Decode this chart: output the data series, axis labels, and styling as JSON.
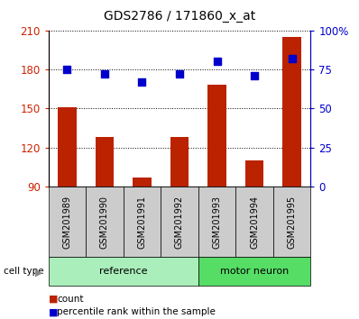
{
  "title": "GDS2786 / 171860_x_at",
  "samples": [
    "GSM201989",
    "GSM201990",
    "GSM201991",
    "GSM201992",
    "GSM201993",
    "GSM201994",
    "GSM201995"
  ],
  "bar_values": [
    151,
    128,
    97,
    128,
    168,
    110,
    205
  ],
  "percentile_values": [
    75,
    72,
    67,
    72,
    80,
    71,
    82
  ],
  "bar_color": "#bb2200",
  "percentile_color": "#0000cc",
  "ylim_left": [
    90,
    210
  ],
  "ylim_right": [
    0,
    100
  ],
  "yticks_left": [
    90,
    120,
    150,
    180,
    210
  ],
  "yticks_right": [
    0,
    25,
    50,
    75,
    100
  ],
  "ytick_labels_right": [
    "0",
    "25",
    "50",
    "75",
    "100%"
  ],
  "group_colors": [
    "#aaeebb",
    "#55dd66"
  ],
  "cell_type_label": "cell type",
  "legend_count_label": "count",
  "legend_percentile_label": "percentile rank within the sample",
  "bar_width": 0.5,
  "xlabel_area_color": "#cccccc",
  "left_axis_color": "#cc2200",
  "right_axis_color": "#0000cc",
  "title_fontsize": 10
}
